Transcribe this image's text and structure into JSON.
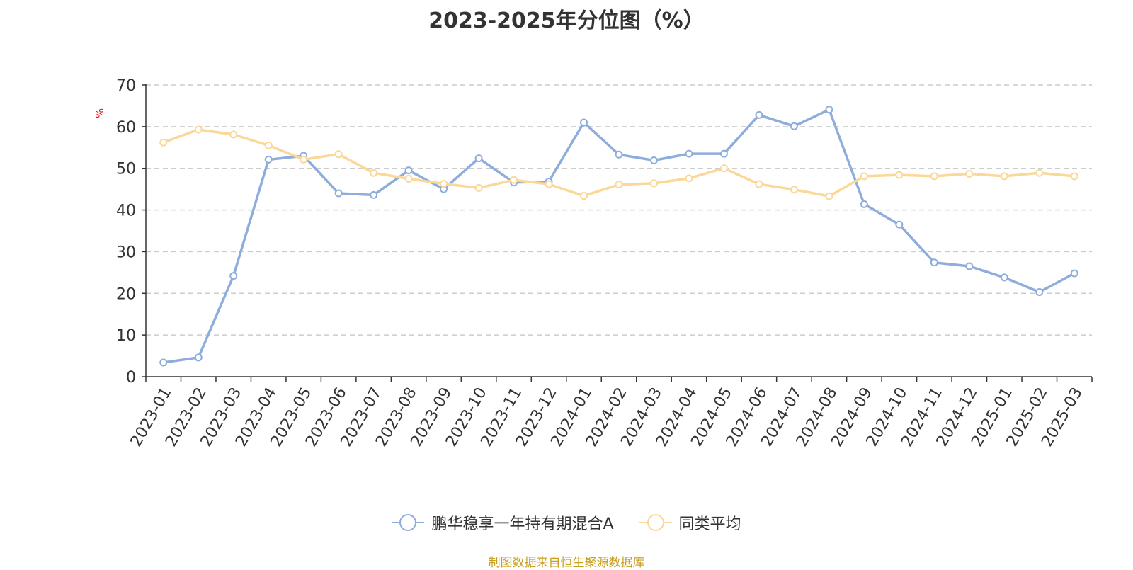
{
  "chart_data": {
    "type": "line",
    "title": "2023-2025年分位图（%）",
    "ylabel": "%",
    "xlabel": "",
    "ylim": [
      0,
      70
    ],
    "yticks": [
      0,
      10,
      20,
      30,
      40,
      50,
      60,
      70
    ],
    "grid": "horizontal dashed",
    "legend_position": "bottom-center",
    "categories": [
      "2023-01",
      "2023-02",
      "2023-03",
      "2023-04",
      "2023-05",
      "2023-06",
      "2023-07",
      "2023-08",
      "2023-09",
      "2023-10",
      "2023-11",
      "2023-12",
      "2024-01",
      "2024-02",
      "2024-03",
      "2024-04",
      "2024-05",
      "2024-06",
      "2024-07",
      "2024-08",
      "2024-09",
      "2024-10",
      "2024-11",
      "2024-12",
      "2025-01",
      "2025-02",
      "2025-03"
    ],
    "series": [
      {
        "name": "鹏华稳享一年持有期混合A",
        "color": "#8eaddc",
        "values": [
          3.4,
          4.6,
          24.2,
          52.1,
          53.0,
          44.0,
          43.6,
          49.5,
          45.0,
          52.4,
          46.6,
          46.8,
          61.0,
          53.3,
          51.9,
          53.5,
          53.5,
          62.8,
          60.1,
          64.1,
          41.4,
          36.5,
          27.4,
          26.5,
          23.8,
          20.3,
          24.8
        ]
      },
      {
        "name": "同类平均",
        "color": "#fbd798",
        "values": [
          56.2,
          59.3,
          58.1,
          55.5,
          52.1,
          53.4,
          48.9,
          47.5,
          46.3,
          45.3,
          47.2,
          46.2,
          43.4,
          46.1,
          46.4,
          47.6,
          50.0,
          46.2,
          44.9,
          43.3,
          48.1,
          48.4,
          48.1,
          48.7,
          48.1,
          48.9,
          48.1
        ]
      }
    ]
  },
  "source_note": "制图数据来自恒生聚源数据库"
}
